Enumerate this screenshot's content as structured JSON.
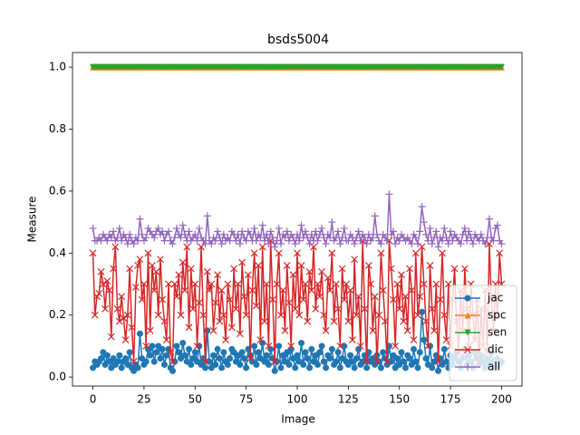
{
  "chart_data": {
    "type": "line",
    "title": "bsds5004",
    "x_label": "Image",
    "y_label": "Measure",
    "x": [
      0,
      1,
      2,
      3,
      4,
      5,
      6,
      7,
      8,
      9,
      10,
      11,
      12,
      13,
      14,
      15,
      16,
      17,
      18,
      19,
      20,
      21,
      22,
      23,
      24,
      25,
      26,
      27,
      28,
      29,
      30,
      31,
      32,
      33,
      34,
      35,
      36,
      37,
      38,
      39,
      40,
      41,
      42,
      43,
      44,
      45,
      46,
      47,
      48,
      49,
      50,
      51,
      52,
      53,
      54,
      55,
      56,
      57,
      58,
      59,
      60,
      61,
      62,
      63,
      64,
      65,
      66,
      67,
      68,
      69,
      70,
      71,
      72,
      73,
      74,
      75,
      76,
      77,
      78,
      79,
      80,
      81,
      82,
      83,
      84,
      85,
      86,
      87,
      88,
      89,
      90,
      91,
      92,
      93,
      94,
      95,
      96,
      97,
      98,
      99,
      100,
      101,
      102,
      103,
      104,
      105,
      106,
      107,
      108,
      109,
      110,
      111,
      112,
      113,
      114,
      115,
      116,
      117,
      118,
      119,
      120,
      121,
      122,
      123,
      124,
      125,
      126,
      127,
      128,
      129,
      130,
      131,
      132,
      133,
      134,
      135,
      136,
      137,
      138,
      139,
      140,
      141,
      142,
      143,
      144,
      145,
      146,
      147,
      148,
      149,
      150,
      151,
      152,
      153,
      154,
      155,
      156,
      157,
      158,
      159,
      160,
      161,
      162,
      163,
      164,
      165,
      166,
      167,
      168,
      169,
      170,
      171,
      172,
      173,
      174,
      175,
      176,
      177,
      178,
      179,
      180,
      181,
      182,
      183,
      184,
      185,
      186,
      187,
      188,
      189,
      190,
      191,
      192,
      193,
      194,
      195,
      196,
      197,
      198,
      199,
      200
    ],
    "series": [
      {
        "name": "jac",
        "color": "#1f77b4",
        "marker": "circle",
        "values": [
          0.03,
          0.05,
          0.04,
          0.05,
          0.06,
          0.08,
          0.04,
          0.07,
          0.05,
          0.03,
          0.06,
          0.04,
          0.05,
          0.07,
          0.03,
          0.05,
          0.06,
          0.04,
          0.08,
          0.03,
          0.02,
          0.04,
          0.03,
          0.14,
          0.06,
          0.04,
          0.05,
          0.09,
          0.07,
          0.1,
          0.05,
          0.08,
          0.1,
          0.06,
          0.09,
          0.04,
          0.07,
          0.09,
          0.03,
          0.02,
          0.05,
          0.1,
          0.08,
          0.06,
          0.11,
          0.07,
          0.05,
          0.09,
          0.04,
          0.06,
          0.08,
          0.05,
          0.1,
          0.04,
          0.06,
          0.03,
          0.15,
          0.05,
          0.03,
          0.07,
          0.04,
          0.09,
          0.06,
          0.03,
          0.08,
          0.05,
          0.04,
          0.06,
          0.09,
          0.08,
          0.05,
          0.07,
          0.04,
          0.08,
          0.06,
          0.03,
          0.09,
          0.07,
          0.05,
          0.1,
          0.04,
          0.08,
          0.06,
          0.11,
          0.05,
          0.07,
          0.04,
          0.09,
          0.06,
          0.02,
          0.05,
          0.1,
          0.03,
          0.07,
          0.05,
          0.08,
          0.04,
          0.09,
          0.06,
          0.03,
          0.07,
          0.05,
          0.11,
          0.04,
          0.08,
          0.06,
          0.03,
          0.09,
          0.05,
          0.07,
          0.04,
          0.08,
          0.1,
          0.05,
          0.03,
          0.07,
          0.06,
          0.09,
          0.04,
          0.05,
          0.08,
          0.03,
          0.06,
          0.1,
          0.05,
          0.04,
          0.07,
          0.05,
          0.03,
          0.06,
          0.09,
          0.04,
          0.05,
          0.07,
          0.03,
          0.08,
          0.05,
          0.06,
          0.04,
          0.07,
          0.05,
          0.03,
          0.08,
          0.06,
          0.04,
          0.1,
          0.05,
          0.07,
          0.03,
          0.06,
          0.04,
          0.08,
          0.05,
          0.03,
          0.07,
          0.06,
          0.04,
          0.09,
          0.05,
          0.03,
          0.08,
          0.21,
          0.12,
          0.06,
          0.04,
          0.1,
          0.03,
          0.05,
          0.07,
          0.02,
          0.06,
          0.04,
          0.09,
          0.05,
          0.03,
          0.07,
          0.04,
          0.06,
          0.08,
          0.05,
          0.03,
          0.06,
          0.09,
          0.04,
          0.07,
          0.05,
          0.03,
          0.08,
          0.06,
          0.04,
          0.07,
          0.05,
          0.03,
          0.06,
          0.04,
          0.08,
          0.05,
          0.03,
          0.06,
          0.04,
          0.05
        ]
      },
      {
        "name": "spc",
        "color": "#ff7f0e",
        "marker": "triangle-up",
        "values": [
          1,
          1,
          1,
          1,
          1,
          1,
          1,
          1,
          1,
          1,
          1,
          1,
          1,
          1,
          1,
          1,
          1,
          1,
          1,
          1,
          1,
          1,
          1,
          1,
          1,
          1,
          1,
          1,
          1,
          1,
          1,
          1,
          1,
          1,
          1,
          1,
          1,
          1,
          1,
          1,
          1,
          1,
          1,
          1,
          1,
          1,
          1,
          1,
          1,
          1,
          1,
          1,
          1,
          1,
          1,
          1,
          1,
          1,
          1,
          1,
          1,
          1,
          1,
          1,
          1,
          1,
          1,
          1,
          1,
          1,
          1,
          1,
          1,
          1,
          1,
          1,
          1,
          1,
          1,
          1,
          1,
          1,
          1,
          1,
          1,
          1,
          1,
          1,
          1,
          1,
          1,
          1,
          1,
          1,
          1,
          1,
          1,
          1,
          1,
          1,
          1,
          1,
          1,
          1,
          1,
          1,
          1,
          1,
          1,
          1,
          1,
          1,
          1,
          1,
          1,
          1,
          1,
          1,
          1,
          1,
          1,
          1,
          1,
          1,
          1,
          1,
          1,
          1,
          1,
          1,
          1,
          1,
          1,
          1,
          1,
          1,
          1,
          1,
          1,
          1,
          1,
          1,
          1,
          1,
          1,
          1,
          1,
          1,
          1,
          1,
          1,
          1,
          1,
          1,
          1,
          1,
          1,
          1,
          1,
          1,
          1,
          1,
          1,
          1,
          1,
          1,
          1,
          1,
          1,
          1,
          1,
          1,
          1,
          1,
          1,
          1,
          1,
          1,
          1,
          1,
          1,
          1,
          1,
          1,
          1,
          1,
          1,
          1,
          1,
          1,
          1,
          1,
          1,
          1,
          1,
          1,
          1,
          1,
          1,
          1,
          1
        ]
      },
      {
        "name": "sen",
        "color": "#2ca02c",
        "marker": "triangle-down",
        "values": [
          1,
          1,
          1,
          1,
          1,
          1,
          1,
          1,
          1,
          1,
          1,
          1,
          1,
          1,
          1,
          1,
          1,
          1,
          1,
          1,
          1,
          1,
          1,
          1,
          1,
          1,
          1,
          1,
          1,
          1,
          1,
          1,
          1,
          1,
          1,
          1,
          1,
          1,
          1,
          1,
          1,
          1,
          1,
          1,
          1,
          1,
          1,
          1,
          1,
          1,
          1,
          1,
          1,
          1,
          1,
          1,
          1,
          1,
          1,
          1,
          1,
          1,
          1,
          1,
          1,
          1,
          1,
          1,
          1,
          1,
          1,
          1,
          1,
          1,
          1,
          1,
          1,
          1,
          1,
          1,
          1,
          1,
          1,
          1,
          1,
          1,
          1,
          1,
          1,
          1,
          1,
          1,
          1,
          1,
          1,
          1,
          1,
          1,
          1,
          1,
          1,
          1,
          1,
          1,
          1,
          1,
          1,
          1,
          1,
          1,
          1,
          1,
          1,
          1,
          1,
          1,
          1,
          1,
          1,
          1,
          1,
          1,
          1,
          1,
          1,
          1,
          1,
          1,
          1,
          1,
          1,
          1,
          1,
          1,
          1,
          1,
          1,
          1,
          1,
          1,
          1,
          1,
          1,
          1,
          1,
          1,
          1,
          1,
          1,
          1,
          1,
          1,
          1,
          1,
          1,
          1,
          1,
          1,
          1,
          1,
          1,
          1,
          1,
          1,
          1,
          1,
          1,
          1,
          1,
          1,
          1,
          1,
          1,
          1,
          1,
          1,
          1,
          1,
          1,
          1,
          1,
          1,
          1,
          1,
          1,
          1,
          1,
          1,
          1,
          1,
          1,
          1,
          1,
          1,
          1,
          1,
          1,
          1,
          1,
          1,
          1
        ]
      },
      {
        "name": "dic",
        "color": "#d62728",
        "marker": "x",
        "values": [
          0.4,
          0.2,
          0.26,
          0.27,
          0.34,
          0.3,
          0.22,
          0.31,
          0.28,
          0.13,
          0.35,
          0.42,
          0.22,
          0.18,
          0.26,
          0.19,
          0.12,
          0.2,
          0.35,
          0.16,
          0.05,
          0.29,
          0.36,
          0.38,
          0.25,
          0.3,
          0.1,
          0.4,
          0.15,
          0.36,
          0.28,
          0.34,
          0.2,
          0.38,
          0.25,
          0.18,
          0.12,
          0.3,
          0.08,
          0.05,
          0.3,
          0.26,
          0.33,
          0.2,
          0.37,
          0.28,
          0.42,
          0.16,
          0.35,
          0.22,
          0.3,
          0.1,
          0.24,
          0.42,
          0.2,
          0.05,
          0.34,
          0.28,
          0.3,
          0.15,
          0.24,
          0.33,
          0.18,
          0.28,
          0.2,
          0.12,
          0.3,
          0.25,
          0.16,
          0.35,
          0.22,
          0.3,
          0.14,
          0.37,
          0.26,
          0.2,
          0.33,
          0.06,
          0.28,
          0.4,
          0.23,
          0.36,
          0.12,
          0.42,
          0.18,
          0.3,
          0.1,
          0.44,
          0.25,
          0.05,
          0.3,
          0.4,
          0.2,
          0.28,
          0.15,
          0.36,
          0.24,
          0.1,
          0.33,
          0.22,
          0.4,
          0.2,
          0.36,
          0.25,
          0.3,
          0.18,
          0.34,
          0.28,
          0.42,
          0.22,
          0.3,
          0.26,
          0.34,
          0.2,
          0.15,
          0.32,
          0.28,
          0.4,
          0.18,
          0.3,
          0.22,
          0.1,
          0.35,
          0.25,
          0.3,
          0.18,
          0.28,
          0.12,
          0.38,
          0.2,
          0.26,
          0.1,
          0.44,
          0.22,
          0.05,
          0.36,
          0.3,
          0.15,
          0.26,
          0.05,
          0.2,
          0.4,
          0.28,
          0.18,
          0.05,
          0.44,
          0.35,
          0.25,
          0.1,
          0.3,
          0.22,
          0.33,
          0.18,
          0.26,
          0.15,
          0.35,
          0.28,
          0.12,
          0.4,
          0.2,
          0.26,
          0.42,
          0.3,
          0.18,
          0.1,
          0.36,
          0.22,
          0.15,
          0.3,
          0.05,
          0.25,
          0.4,
          0.2,
          0.12,
          0.3,
          0.1,
          0.25,
          0.35,
          0.18,
          0.08,
          0.28,
          0.15,
          0.35,
          0.22,
          0.1,
          0.3,
          0.2,
          0.12,
          0.25,
          0.05,
          0.22,
          0.1,
          0.28,
          0.08,
          0.43,
          0.25,
          0.15,
          0.3,
          0.2,
          0.4,
          0.3
        ]
      },
      {
        "name": "all",
        "color": "#9467bd",
        "marker": "plus",
        "values": [
          0.48,
          0.44,
          0.44,
          0.45,
          0.44,
          0.46,
          0.45,
          0.44,
          0.46,
          0.45,
          0.47,
          0.44,
          0.45,
          0.48,
          0.44,
          0.46,
          0.45,
          0.43,
          0.46,
          0.44,
          0.43,
          0.45,
          0.44,
          0.51,
          0.46,
          0.44,
          0.45,
          0.48,
          0.47,
          0.46,
          0.45,
          0.47,
          0.48,
          0.46,
          0.47,
          0.44,
          0.46,
          0.47,
          0.44,
          0.43,
          0.45,
          0.48,
          0.46,
          0.45,
          0.49,
          0.46,
          0.44,
          0.47,
          0.44,
          0.45,
          0.46,
          0.44,
          0.48,
          0.45,
          0.44,
          0.43,
          0.52,
          0.44,
          0.43,
          0.45,
          0.44,
          0.47,
          0.45,
          0.43,
          0.46,
          0.44,
          0.45,
          0.44,
          0.47,
          0.46,
          0.44,
          0.46,
          0.43,
          0.47,
          0.45,
          0.44,
          0.47,
          0.46,
          0.44,
          0.48,
          0.44,
          0.46,
          0.45,
          0.49,
          0.44,
          0.46,
          0.43,
          0.47,
          0.45,
          0.42,
          0.44,
          0.48,
          0.43,
          0.46,
          0.45,
          0.47,
          0.44,
          0.46,
          0.45,
          0.43,
          0.46,
          0.44,
          0.49,
          0.45,
          0.47,
          0.45,
          0.43,
          0.46,
          0.44,
          0.47,
          0.44,
          0.46,
          0.48,
          0.45,
          0.43,
          0.46,
          0.45,
          0.5,
          0.44,
          0.45,
          0.47,
          0.43,
          0.45,
          0.48,
          0.44,
          0.44,
          0.46,
          0.45,
          0.43,
          0.45,
          0.47,
          0.44,
          0.46,
          0.45,
          0.43,
          0.46,
          0.44,
          0.45,
          0.52,
          0.46,
          0.44,
          0.43,
          0.46,
          0.45,
          0.44,
          0.59,
          0.46,
          0.47,
          0.43,
          0.45,
          0.44,
          0.46,
          0.45,
          0.44,
          0.45,
          0.44,
          0.43,
          0.46,
          0.45,
          0.43,
          0.47,
          0.55,
          0.5,
          0.46,
          0.44,
          0.48,
          0.43,
          0.45,
          0.47,
          0.42,
          0.45,
          0.44,
          0.48,
          0.45,
          0.43,
          0.47,
          0.44,
          0.46,
          0.45,
          0.44,
          0.43,
          0.46,
          0.48,
          0.44,
          0.47,
          0.45,
          0.43,
          0.46,
          0.45,
          0.44,
          0.46,
          0.44,
          0.43,
          0.45,
          0.51,
          0.45,
          0.44,
          0.48,
          0.49,
          0.44,
          0.43
        ]
      }
    ],
    "xlim": [
      -10,
      210
    ],
    "ylim": [
      -0.029,
      1.047
    ],
    "xticks": [
      0,
      25,
      50,
      75,
      100,
      125,
      150,
      175,
      200
    ],
    "yticks": [
      {
        "value": 0,
        "label": "0.0"
      },
      0.2,
      0.4,
      0.6,
      0.8,
      {
        "value": 1,
        "label": "1.0"
      }
    ],
    "legend": "lower right"
  }
}
